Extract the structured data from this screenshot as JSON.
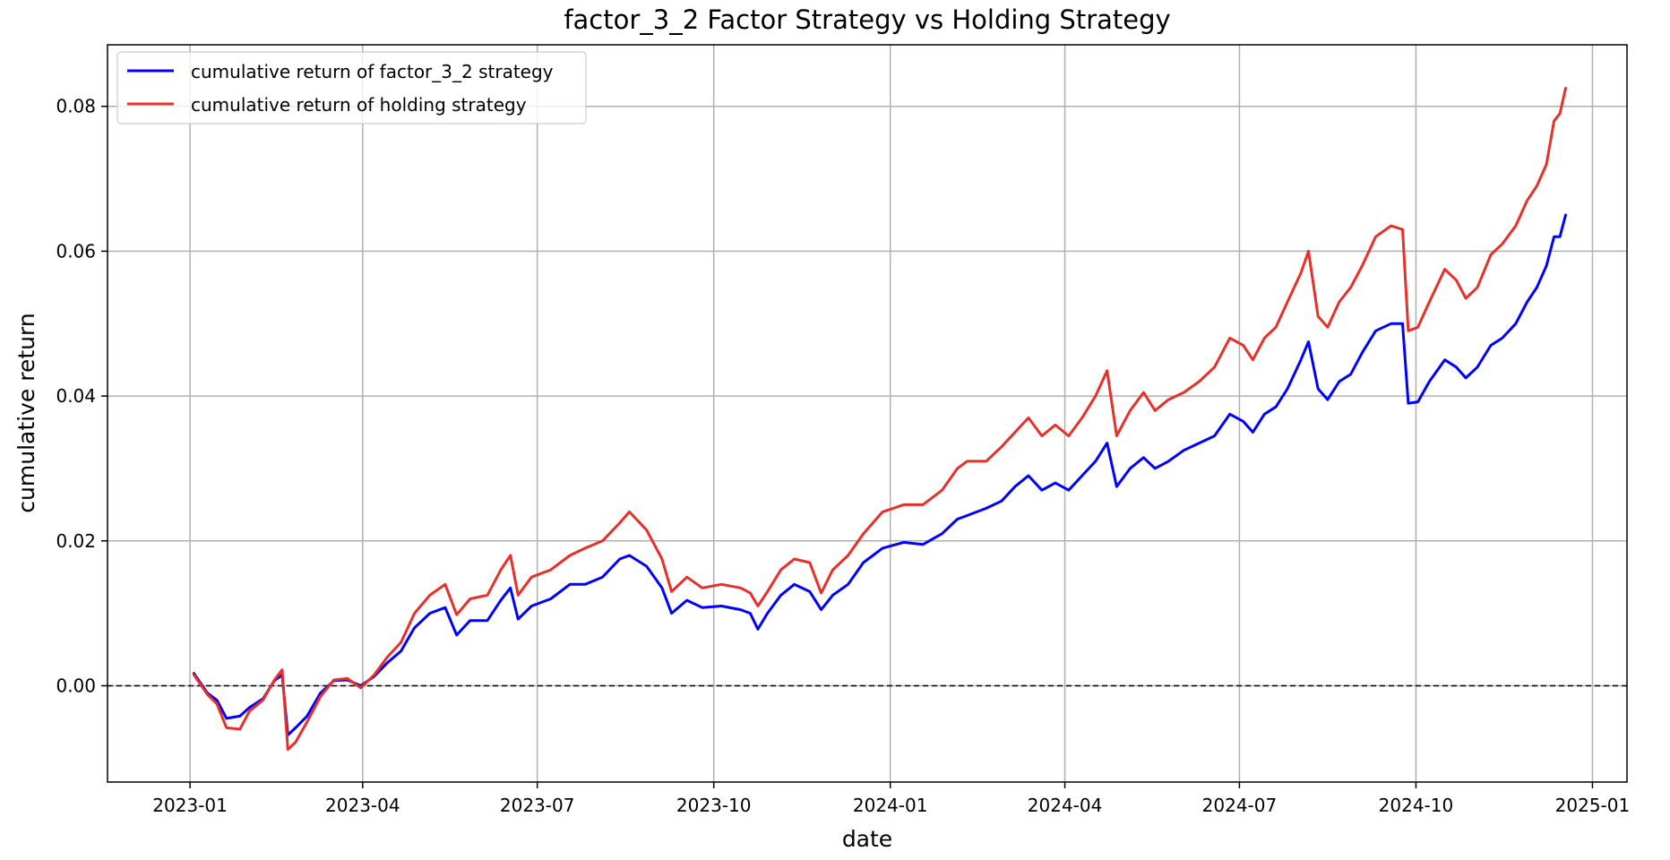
{
  "chart_data": {
    "type": "line",
    "title": "factor_3_2 Factor Strategy vs Holding Strategy",
    "xlabel": "date",
    "ylabel": "cumulative return",
    "xlim": [
      "2022-11-19",
      "2025-01-19"
    ],
    "ylim": [
      -0.0133,
      0.0885
    ],
    "x_ticks": [
      {
        "date": "2023-01-01",
        "label": "2023-01"
      },
      {
        "date": "2023-04-01",
        "label": "2023-04"
      },
      {
        "date": "2023-07-01",
        "label": "2023-07"
      },
      {
        "date": "2023-10-01",
        "label": "2023-10"
      },
      {
        "date": "2024-01-01",
        "label": "2024-01"
      },
      {
        "date": "2024-04-01",
        "label": "2024-04"
      },
      {
        "date": "2024-07-01",
        "label": "2024-07"
      },
      {
        "date": "2024-10-01",
        "label": "2024-10"
      },
      {
        "date": "2025-01-01",
        "label": "2025-01"
      }
    ],
    "y_ticks": [
      {
        "value": 0.0,
        "label": "0.00"
      },
      {
        "value": 0.02,
        "label": "0.02"
      },
      {
        "value": 0.04,
        "label": "0.04"
      },
      {
        "value": 0.06,
        "label": "0.06"
      },
      {
        "value": 0.08,
        "label": "0.08"
      }
    ],
    "grid": true,
    "legend_position": "top-left",
    "reference_line": {
      "y": 0.0,
      "style": "dashed",
      "color": "#000000"
    },
    "series": [
      {
        "name": "cumulative return of factor_3_2 strategy",
        "color": "#0000ff",
        "points": [
          [
            "2023-01-03",
            0.0017
          ],
          [
            "2023-01-10",
            -0.001
          ],
          [
            "2023-01-15",
            -0.002
          ],
          [
            "2023-01-20",
            -0.0045
          ],
          [
            "2023-01-27",
            -0.0042
          ],
          [
            "2023-02-01",
            -0.003
          ],
          [
            "2023-02-08",
            -0.0018
          ],
          [
            "2023-02-14",
            0.0007
          ],
          [
            "2023-02-18",
            0.0015
          ],
          [
            "2023-02-21",
            -0.0068
          ],
          [
            "2023-02-25",
            -0.0058
          ],
          [
            "2023-03-03",
            -0.0042
          ],
          [
            "2023-03-10",
            -0.001
          ],
          [
            "2023-03-17",
            0.0007
          ],
          [
            "2023-03-24",
            0.0008
          ],
          [
            "2023-03-31",
            0.0
          ],
          [
            "2023-04-07",
            0.0013
          ],
          [
            "2023-04-14",
            0.0032
          ],
          [
            "2023-04-21",
            0.0048
          ],
          [
            "2023-04-28",
            0.008
          ],
          [
            "2023-05-06",
            0.01
          ],
          [
            "2023-05-14",
            0.0108
          ],
          [
            "2023-05-20",
            0.007
          ],
          [
            "2023-05-27",
            0.009
          ],
          [
            "2023-06-05",
            0.009
          ],
          [
            "2023-06-12",
            0.0118
          ],
          [
            "2023-06-17",
            0.0135
          ],
          [
            "2023-06-21",
            0.0092
          ],
          [
            "2023-06-28",
            0.011
          ],
          [
            "2023-07-08",
            0.012
          ],
          [
            "2023-07-18",
            0.014
          ],
          [
            "2023-07-26",
            0.014
          ],
          [
            "2023-08-04",
            0.015
          ],
          [
            "2023-08-13",
            0.0175
          ],
          [
            "2023-08-18",
            0.018
          ],
          [
            "2023-08-27",
            0.0165
          ],
          [
            "2023-09-04",
            0.0135
          ],
          [
            "2023-09-09",
            0.01
          ],
          [
            "2023-09-17",
            0.0118
          ],
          [
            "2023-09-25",
            0.0108
          ],
          [
            "2023-10-05",
            0.011
          ],
          [
            "2023-10-15",
            0.0105
          ],
          [
            "2023-10-20",
            0.01
          ],
          [
            "2023-10-24",
            0.0078
          ],
          [
            "2023-10-29",
            0.01
          ],
          [
            "2023-11-05",
            0.0125
          ],
          [
            "2023-11-12",
            0.014
          ],
          [
            "2023-11-20",
            0.013
          ],
          [
            "2023-11-26",
            0.0105
          ],
          [
            "2023-12-02",
            0.0125
          ],
          [
            "2023-12-10",
            0.014
          ],
          [
            "2023-12-18",
            0.017
          ],
          [
            "2023-12-28",
            0.019
          ],
          [
            "2024-01-08",
            0.0198
          ],
          [
            "2024-01-18",
            0.0195
          ],
          [
            "2024-01-28",
            0.021
          ],
          [
            "2024-02-05",
            0.023
          ],
          [
            "2024-02-10",
            0.0235
          ],
          [
            "2024-02-20",
            0.0245
          ],
          [
            "2024-02-28",
            0.0255
          ],
          [
            "2024-03-06",
            0.0275
          ],
          [
            "2024-03-13",
            0.029
          ],
          [
            "2024-03-20",
            0.027
          ],
          [
            "2024-03-27",
            0.028
          ],
          [
            "2024-04-03",
            0.027
          ],
          [
            "2024-04-10",
            0.029
          ],
          [
            "2024-04-17",
            0.031
          ],
          [
            "2024-04-23",
            0.0335
          ],
          [
            "2024-04-28",
            0.0275
          ],
          [
            "2024-05-05",
            0.03
          ],
          [
            "2024-05-12",
            0.0315
          ],
          [
            "2024-05-18",
            0.03
          ],
          [
            "2024-05-25",
            0.031
          ],
          [
            "2024-06-02",
            0.0325
          ],
          [
            "2024-06-10",
            0.0335
          ],
          [
            "2024-06-18",
            0.0345
          ],
          [
            "2024-06-26",
            0.0375
          ],
          [
            "2024-07-03",
            0.0365
          ],
          [
            "2024-07-08",
            0.035
          ],
          [
            "2024-07-14",
            0.0375
          ],
          [
            "2024-07-20",
            0.0385
          ],
          [
            "2024-07-26",
            0.041
          ],
          [
            "2024-08-02",
            0.045
          ],
          [
            "2024-08-06",
            0.0475
          ],
          [
            "2024-08-11",
            0.041
          ],
          [
            "2024-08-16",
            0.0395
          ],
          [
            "2024-08-22",
            0.042
          ],
          [
            "2024-08-28",
            0.043
          ],
          [
            "2024-09-03",
            0.046
          ],
          [
            "2024-09-10",
            0.049
          ],
          [
            "2024-09-18",
            0.05
          ],
          [
            "2024-09-24",
            0.05
          ],
          [
            "2024-09-27",
            0.039
          ],
          [
            "2024-10-02",
            0.0392
          ],
          [
            "2024-10-08",
            0.042
          ],
          [
            "2024-10-16",
            0.045
          ],
          [
            "2024-10-22",
            0.044
          ],
          [
            "2024-10-27",
            0.0425
          ],
          [
            "2024-11-02",
            0.044
          ],
          [
            "2024-11-09",
            0.047
          ],
          [
            "2024-11-15",
            0.048
          ],
          [
            "2024-11-22",
            0.05
          ],
          [
            "2024-11-28",
            0.053
          ],
          [
            "2024-12-03",
            0.055
          ],
          [
            "2024-12-08",
            0.058
          ],
          [
            "2024-12-12",
            0.062
          ],
          [
            "2024-12-15",
            0.062
          ],
          [
            "2024-12-18",
            0.065
          ]
        ]
      },
      {
        "name": "cumulative return of holding strategy",
        "color": "#e8302a",
        "points": [
          [
            "2023-01-03",
            0.0015
          ],
          [
            "2023-01-10",
            -0.0012
          ],
          [
            "2023-01-15",
            -0.0025
          ],
          [
            "2023-01-20",
            -0.0058
          ],
          [
            "2023-01-27",
            -0.006
          ],
          [
            "2023-02-01",
            -0.0035
          ],
          [
            "2023-02-08",
            -0.002
          ],
          [
            "2023-02-14",
            0.0008
          ],
          [
            "2023-02-18",
            0.0022
          ],
          [
            "2023-02-21",
            -0.0088
          ],
          [
            "2023-02-25",
            -0.0078
          ],
          [
            "2023-03-03",
            -0.005
          ],
          [
            "2023-03-10",
            -0.0015
          ],
          [
            "2023-03-17",
            0.0008
          ],
          [
            "2023-03-24",
            0.001
          ],
          [
            "2023-03-31",
            -0.0003
          ],
          [
            "2023-04-07",
            0.0015
          ],
          [
            "2023-04-14",
            0.004
          ],
          [
            "2023-04-21",
            0.006
          ],
          [
            "2023-04-28",
            0.01
          ],
          [
            "2023-05-06",
            0.0125
          ],
          [
            "2023-05-14",
            0.014
          ],
          [
            "2023-05-20",
            0.0098
          ],
          [
            "2023-05-27",
            0.012
          ],
          [
            "2023-06-05",
            0.0125
          ],
          [
            "2023-06-12",
            0.016
          ],
          [
            "2023-06-17",
            0.018
          ],
          [
            "2023-06-21",
            0.0125
          ],
          [
            "2023-06-28",
            0.015
          ],
          [
            "2023-07-08",
            0.016
          ],
          [
            "2023-07-18",
            0.018
          ],
          [
            "2023-07-26",
            0.019
          ],
          [
            "2023-08-04",
            0.02
          ],
          [
            "2023-08-13",
            0.0225
          ],
          [
            "2023-08-18",
            0.024
          ],
          [
            "2023-08-27",
            0.0215
          ],
          [
            "2023-09-04",
            0.0175
          ],
          [
            "2023-09-09",
            0.013
          ],
          [
            "2023-09-17",
            0.015
          ],
          [
            "2023-09-25",
            0.0135
          ],
          [
            "2023-10-05",
            0.014
          ],
          [
            "2023-10-15",
            0.0135
          ],
          [
            "2023-10-20",
            0.0128
          ],
          [
            "2023-10-24",
            0.011
          ],
          [
            "2023-10-29",
            0.013
          ],
          [
            "2023-11-05",
            0.016
          ],
          [
            "2023-11-12",
            0.0175
          ],
          [
            "2023-11-20",
            0.017
          ],
          [
            "2023-11-26",
            0.0128
          ],
          [
            "2023-12-02",
            0.016
          ],
          [
            "2023-12-10",
            0.018
          ],
          [
            "2023-12-18",
            0.021
          ],
          [
            "2023-12-28",
            0.024
          ],
          [
            "2024-01-08",
            0.025
          ],
          [
            "2024-01-18",
            0.025
          ],
          [
            "2024-01-28",
            0.027
          ],
          [
            "2024-02-05",
            0.03
          ],
          [
            "2024-02-10",
            0.031
          ],
          [
            "2024-02-20",
            0.031
          ],
          [
            "2024-02-28",
            0.033
          ],
          [
            "2024-03-06",
            0.035
          ],
          [
            "2024-03-13",
            0.037
          ],
          [
            "2024-03-20",
            0.0345
          ],
          [
            "2024-03-27",
            0.036
          ],
          [
            "2024-04-03",
            0.0345
          ],
          [
            "2024-04-10",
            0.037
          ],
          [
            "2024-04-17",
            0.04
          ],
          [
            "2024-04-23",
            0.0435
          ],
          [
            "2024-04-28",
            0.0345
          ],
          [
            "2024-05-05",
            0.038
          ],
          [
            "2024-05-12",
            0.0405
          ],
          [
            "2024-05-18",
            0.038
          ],
          [
            "2024-05-25",
            0.0395
          ],
          [
            "2024-06-02",
            0.0405
          ],
          [
            "2024-06-10",
            0.042
          ],
          [
            "2024-06-18",
            0.044
          ],
          [
            "2024-06-26",
            0.048
          ],
          [
            "2024-07-03",
            0.047
          ],
          [
            "2024-07-08",
            0.045
          ],
          [
            "2024-07-14",
            0.048
          ],
          [
            "2024-07-20",
            0.0495
          ],
          [
            "2024-07-26",
            0.053
          ],
          [
            "2024-08-02",
            0.057
          ],
          [
            "2024-08-06",
            0.06
          ],
          [
            "2024-08-11",
            0.051
          ],
          [
            "2024-08-16",
            0.0495
          ],
          [
            "2024-08-22",
            0.053
          ],
          [
            "2024-08-28",
            0.055
          ],
          [
            "2024-09-03",
            0.058
          ],
          [
            "2024-09-10",
            0.062
          ],
          [
            "2024-09-18",
            0.0635
          ],
          [
            "2024-09-24",
            0.063
          ],
          [
            "2024-09-27",
            0.049
          ],
          [
            "2024-10-02",
            0.0495
          ],
          [
            "2024-10-08",
            0.053
          ],
          [
            "2024-10-16",
            0.0575
          ],
          [
            "2024-10-22",
            0.056
          ],
          [
            "2024-10-27",
            0.0535
          ],
          [
            "2024-11-02",
            0.055
          ],
          [
            "2024-11-09",
            0.0595
          ],
          [
            "2024-11-15",
            0.061
          ],
          [
            "2024-11-22",
            0.0635
          ],
          [
            "2024-11-28",
            0.067
          ],
          [
            "2024-12-03",
            0.069
          ],
          [
            "2024-12-08",
            0.072
          ],
          [
            "2024-12-12",
            0.078
          ],
          [
            "2024-12-15",
            0.079
          ],
          [
            "2024-12-18",
            0.0825
          ]
        ]
      }
    ]
  }
}
